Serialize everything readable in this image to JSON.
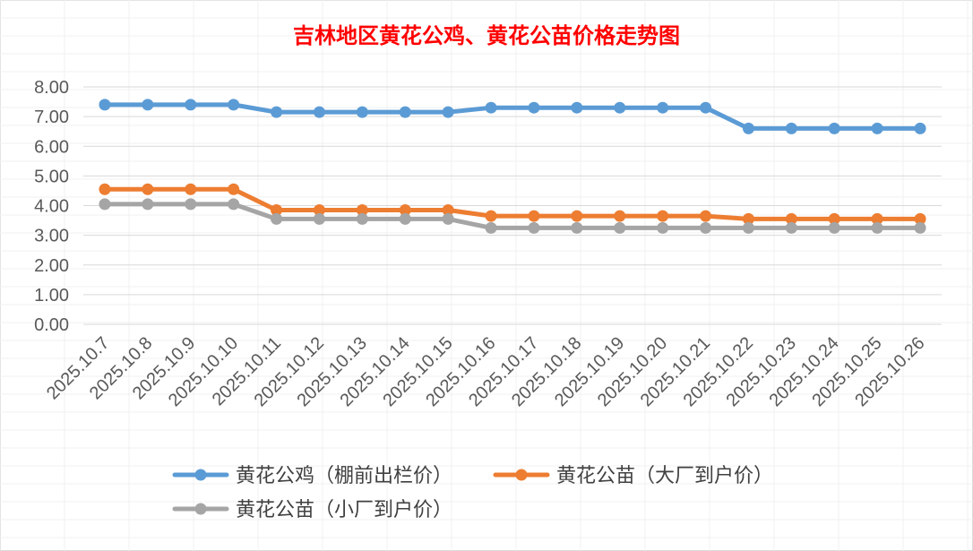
{
  "chart_data": {
    "type": "line",
    "title": "吉林地区黄花公鸡、黄花公苗价格走势图",
    "title_color": "#ff0000",
    "categories": [
      "2025.10.7",
      "2025.10.8",
      "2025.10.9",
      "2025.10.10",
      "2025.10.11",
      "2025.10.12",
      "2025.10.13",
      "2025.10.14",
      "2025.10.15",
      "2025.10.16",
      "2025.10.17",
      "2025.10.18",
      "2025.10.19",
      "2025.10.20",
      "2025.10.21",
      "2025.10.22",
      "2025.10.23",
      "2025.10.24",
      "2025.10.25",
      "2025.10.26"
    ],
    "ylim": [
      0,
      8
    ],
    "y_ticks": [
      "0.00",
      "1.00",
      "2.00",
      "3.00",
      "4.00",
      "5.00",
      "6.00",
      "7.00",
      "8.00"
    ],
    "grid": true,
    "legend_position": "bottom",
    "series": [
      {
        "name": "黄花公鸡（棚前出栏价）",
        "color": "#5b9bd5",
        "values": [
          7.4,
          7.4,
          7.4,
          7.4,
          7.15,
          7.15,
          7.15,
          7.15,
          7.15,
          7.3,
          7.3,
          7.3,
          7.3,
          7.3,
          7.3,
          6.6,
          6.6,
          6.6,
          6.6,
          6.6
        ]
      },
      {
        "name": "黄花公苗（大厂到户价）",
        "color": "#ed7d31",
        "values": [
          4.55,
          4.55,
          4.55,
          4.55,
          3.85,
          3.85,
          3.85,
          3.85,
          3.85,
          3.65,
          3.65,
          3.65,
          3.65,
          3.65,
          3.65,
          3.55,
          3.55,
          3.55,
          3.55,
          3.55
        ]
      },
      {
        "name": "黄花公苗（小厂到户价）",
        "color": "#a5a5a5",
        "values": [
          4.05,
          4.05,
          4.05,
          4.05,
          3.55,
          3.55,
          3.55,
          3.55,
          3.55,
          3.25,
          3.25,
          3.25,
          3.25,
          3.25,
          3.25,
          3.25,
          3.25,
          3.25,
          3.25,
          3.25
        ]
      }
    ]
  }
}
